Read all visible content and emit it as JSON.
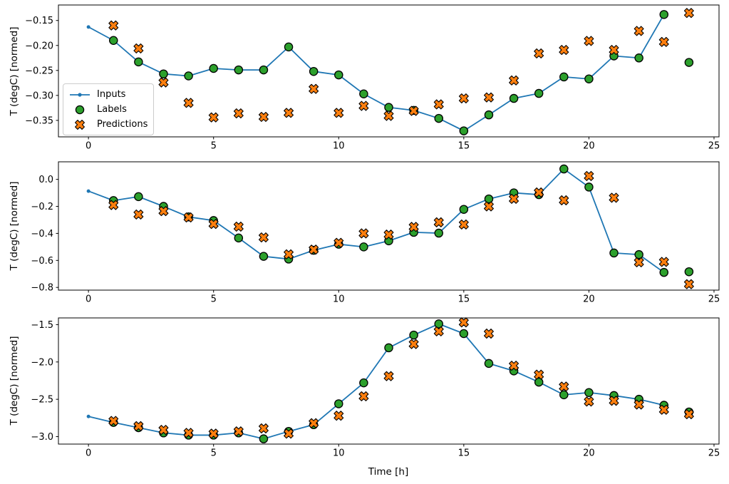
{
  "figure": {
    "xlabel": "Time [h]",
    "ylabel": "T (degC) [normed]",
    "legend": {
      "items": [
        {
          "label": "Inputs"
        },
        {
          "label": "Labels"
        },
        {
          "label": "Predictions"
        }
      ],
      "position": "left of top subplot"
    },
    "colors": {
      "inputs": "#1f77b4",
      "labels": "#2ca02c",
      "predictions": "#ff7f0e",
      "marker_edge": "#000000",
      "spine": "#000000",
      "text": "#000000",
      "background": "#ffffff",
      "legend_border": "#cccccc"
    }
  },
  "chart_data": [
    {
      "type": "line",
      "subplot": "top",
      "ylabel": "T (degC) [normed]",
      "xlabel": "",
      "xlim": [
        -1.2,
        25.2
      ],
      "ylim": [
        -0.383,
        -0.119
      ],
      "xticks": [
        0,
        5,
        10,
        15,
        20,
        25
      ],
      "xtick_labels": [
        "0",
        "5",
        "10",
        "15",
        "20",
        "25"
      ],
      "yticks": [
        -0.15,
        -0.2,
        -0.25,
        -0.3,
        -0.35
      ],
      "ytick_labels": [
        "−0.15",
        "−0.20",
        "−0.25",
        "−0.30",
        "−0.35"
      ],
      "grid": false,
      "series": [
        {
          "name": "Inputs",
          "plot": "line",
          "marker": "dot",
          "color": "#1f77b4",
          "x": [
            0,
            1,
            2,
            3,
            4,
            5,
            6,
            7,
            8,
            9,
            10,
            11,
            12,
            13,
            14,
            15,
            16,
            17,
            18,
            19,
            20,
            21,
            22,
            23
          ],
          "y": [
            -0.163,
            -0.19,
            -0.233,
            -0.257,
            -0.261,
            -0.246,
            -0.249,
            -0.249,
            -0.203,
            -0.252,
            -0.259,
            -0.297,
            -0.324,
            -0.33,
            -0.346,
            -0.371,
            -0.339,
            -0.306,
            -0.296,
            -0.263,
            -0.267,
            -0.221,
            -0.225,
            -0.138
          ]
        },
        {
          "name": "Labels",
          "plot": "scatter",
          "marker": "circle",
          "color": "#2ca02c",
          "edge_color": "#000000",
          "x": [
            1,
            2,
            3,
            4,
            5,
            6,
            7,
            8,
            9,
            10,
            11,
            12,
            13,
            14,
            15,
            16,
            17,
            18,
            19,
            20,
            21,
            22,
            23,
            24
          ],
          "y": [
            -0.19,
            -0.233,
            -0.257,
            -0.261,
            -0.246,
            -0.249,
            -0.249,
            -0.203,
            -0.252,
            -0.259,
            -0.297,
            -0.324,
            -0.33,
            -0.346,
            -0.371,
            -0.339,
            -0.306,
            -0.296,
            -0.263,
            -0.267,
            -0.221,
            -0.225,
            -0.138,
            -0.234
          ]
        },
        {
          "name": "Predictions",
          "plot": "scatter",
          "marker": "X",
          "color": "#ff7f0e",
          "edge_color": "#000000",
          "x": [
            1,
            2,
            3,
            4,
            5,
            6,
            7,
            8,
            9,
            10,
            11,
            12,
            13,
            14,
            15,
            16,
            17,
            18,
            19,
            20,
            21,
            22,
            23,
            24
          ],
          "y": [
            -0.16,
            -0.206,
            -0.274,
            -0.315,
            -0.344,
            -0.336,
            -0.343,
            -0.335,
            -0.287,
            -0.335,
            -0.321,
            -0.341,
            -0.331,
            -0.318,
            -0.306,
            -0.304,
            -0.27,
            -0.216,
            -0.209,
            -0.191,
            -0.209,
            -0.171,
            -0.193,
            -0.135
          ]
        }
      ]
    },
    {
      "type": "line",
      "subplot": "middle",
      "ylabel": "T (degC) [normed]",
      "xlabel": "",
      "xlim": [
        -1.2,
        25.2
      ],
      "ylim": [
        -0.82,
        0.13
      ],
      "xticks": [
        0,
        5,
        10,
        15,
        20,
        25
      ],
      "xtick_labels": [
        "0",
        "5",
        "10",
        "15",
        "20",
        "25"
      ],
      "yticks": [
        0.0,
        -0.2,
        -0.4,
        -0.6,
        -0.8
      ],
      "ytick_labels": [
        "0.0",
        "−0.2",
        "−0.4",
        "−0.6",
        "−0.8"
      ],
      "grid": false,
      "series": [
        {
          "name": "Inputs",
          "plot": "line",
          "marker": "dot",
          "color": "#1f77b4",
          "x": [
            0,
            1,
            2,
            3,
            4,
            5,
            6,
            7,
            8,
            9,
            10,
            11,
            12,
            13,
            14,
            15,
            16,
            17,
            18,
            19,
            20,
            21,
            22,
            23
          ],
          "y": [
            -0.087,
            -0.157,
            -0.128,
            -0.2,
            -0.278,
            -0.305,
            -0.434,
            -0.57,
            -0.59,
            -0.525,
            -0.48,
            -0.5,
            -0.455,
            -0.392,
            -0.398,
            -0.222,
            -0.145,
            -0.1,
            -0.113,
            0.077,
            -0.057,
            -0.545,
            -0.557,
            -0.689
          ]
        },
        {
          "name": "Labels",
          "plot": "scatter",
          "marker": "circle",
          "color": "#2ca02c",
          "edge_color": "#000000",
          "x": [
            1,
            2,
            3,
            4,
            5,
            6,
            7,
            8,
            9,
            10,
            11,
            12,
            13,
            14,
            15,
            16,
            17,
            18,
            19,
            20,
            21,
            22,
            23,
            24
          ],
          "y": [
            -0.157,
            -0.128,
            -0.2,
            -0.278,
            -0.305,
            -0.434,
            -0.57,
            -0.59,
            -0.525,
            -0.48,
            -0.5,
            -0.455,
            -0.392,
            -0.398,
            -0.222,
            -0.145,
            -0.1,
            -0.113,
            0.077,
            -0.057,
            -0.545,
            -0.557,
            -0.689,
            -0.684
          ]
        },
        {
          "name": "Predictions",
          "plot": "scatter",
          "marker": "X",
          "color": "#ff7f0e",
          "edge_color": "#000000",
          "x": [
            1,
            2,
            3,
            4,
            5,
            6,
            7,
            8,
            9,
            10,
            11,
            12,
            13,
            14,
            15,
            16,
            17,
            18,
            19,
            20,
            21,
            22,
            23,
            24
          ],
          "y": [
            -0.19,
            -0.26,
            -0.235,
            -0.282,
            -0.33,
            -0.35,
            -0.43,
            -0.555,
            -0.52,
            -0.47,
            -0.4,
            -0.409,
            -0.352,
            -0.318,
            -0.334,
            -0.2,
            -0.144,
            -0.097,
            -0.155,
            0.025,
            -0.136,
            -0.614,
            -0.611,
            -0.776
          ]
        }
      ]
    },
    {
      "type": "line",
      "subplot": "bottom",
      "ylabel": "T (degC) [normed]",
      "xlabel": "Time [h]",
      "xlim": [
        -1.2,
        25.2
      ],
      "ylim": [
        -3.1,
        -1.41
      ],
      "xticks": [
        0,
        5,
        10,
        15,
        20,
        25
      ],
      "xtick_labels": [
        "0",
        "5",
        "10",
        "15",
        "20",
        "25"
      ],
      "yticks": [
        -1.5,
        -2.0,
        -2.5,
        -3.0
      ],
      "ytick_labels": [
        "−1.5",
        "−2.0",
        "−2.5",
        "−3.0"
      ],
      "grid": false,
      "series": [
        {
          "name": "Inputs",
          "plot": "line",
          "marker": "dot",
          "color": "#1f77b4",
          "x": [
            0,
            1,
            2,
            3,
            4,
            5,
            6,
            7,
            8,
            9,
            10,
            11,
            12,
            13,
            14,
            15,
            16,
            17,
            18,
            19,
            20,
            21,
            22,
            23
          ],
          "y": [
            -2.73,
            -2.81,
            -2.88,
            -2.95,
            -2.98,
            -2.98,
            -2.95,
            -3.03,
            -2.93,
            -2.84,
            -2.56,
            -2.28,
            -1.81,
            -1.64,
            -1.49,
            -1.62,
            -2.02,
            -2.12,
            -2.27,
            -2.44,
            -2.41,
            -2.45,
            -2.5,
            -2.58
          ]
        },
        {
          "name": "Labels",
          "plot": "scatter",
          "marker": "circle",
          "color": "#2ca02c",
          "edge_color": "#000000",
          "x": [
            1,
            2,
            3,
            4,
            5,
            6,
            7,
            8,
            9,
            10,
            11,
            12,
            13,
            14,
            15,
            16,
            17,
            18,
            19,
            20,
            21,
            22,
            23,
            24
          ],
          "y": [
            -2.81,
            -2.88,
            -2.95,
            -2.98,
            -2.98,
            -2.95,
            -3.03,
            -2.93,
            -2.84,
            -2.56,
            -2.28,
            -1.81,
            -1.64,
            -1.49,
            -1.62,
            -2.02,
            -2.12,
            -2.27,
            -2.44,
            -2.41,
            -2.45,
            -2.5,
            -2.58,
            -2.67
          ]
        },
        {
          "name": "Predictions",
          "plot": "scatter",
          "marker": "X",
          "color": "#ff7f0e",
          "edge_color": "#000000",
          "x": [
            1,
            2,
            3,
            4,
            5,
            6,
            7,
            8,
            9,
            10,
            11,
            12,
            13,
            14,
            15,
            16,
            17,
            18,
            19,
            20,
            21,
            22,
            23,
            24
          ],
          "y": [
            -2.79,
            -2.86,
            -2.91,
            -2.95,
            -2.96,
            -2.93,
            -2.89,
            -2.96,
            -2.82,
            -2.72,
            -2.46,
            -2.19,
            -1.76,
            -1.59,
            -1.47,
            -1.62,
            -2.05,
            -2.17,
            -2.33,
            -2.53,
            -2.52,
            -2.57,
            -2.64,
            -2.7
          ]
        }
      ]
    }
  ]
}
